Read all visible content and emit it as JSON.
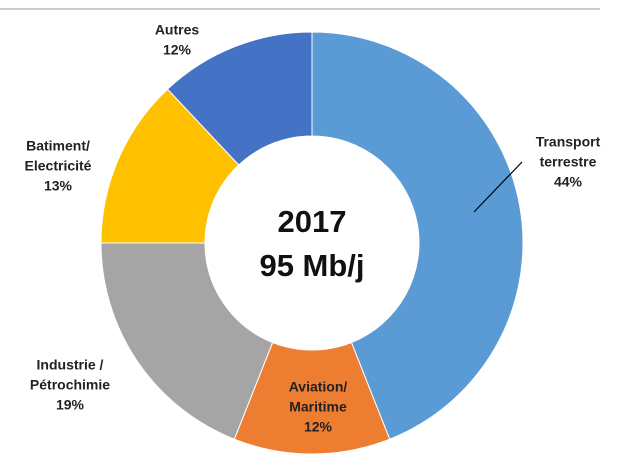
{
  "chart_data": {
    "type": "donut",
    "categories": [
      [
        "Transport",
        "terrestre"
      ],
      [
        "Aviation/",
        "Maritime"
      ],
      [
        "Industrie  /",
        "Pétrochimie"
      ],
      [
        "Batiment/",
        "Electricité"
      ],
      [
        "Autres"
      ]
    ],
    "values": [
      44,
      12,
      19,
      13,
      12
    ],
    "value_labels": [
      "44%",
      "12%",
      "19%",
      "13%",
      "12%"
    ],
    "colors": [
      "#5b9bd5",
      "#ed7d31",
      "#a5a5a5",
      "#ffc000",
      "#4472c4"
    ],
    "annotations": [
      "2017",
      "95 Mb/j"
    ]
  }
}
